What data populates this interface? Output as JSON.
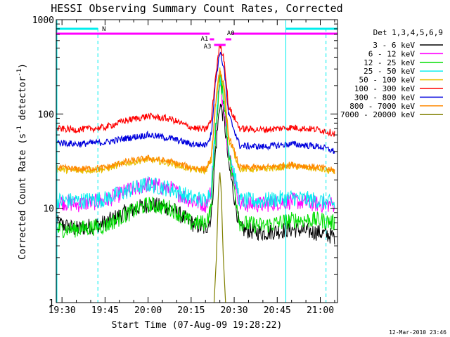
{
  "chart_data": {
    "type": "line",
    "title": "HESSI Observing Summary Count Rates, Corrected",
    "xlabel": "Start Time (07-Aug-09 19:28:22)",
    "ylabel": "Corrected Count Rate (s⁻¹ detector⁻¹)",
    "ylabel_parts": [
      "Corrected Count Rate (s",
      "-1",
      " detector",
      "-1",
      ")"
    ],
    "yscale": "log",
    "ylim": [
      1,
      1000
    ],
    "xlim_minutes": [
      -2,
      96
    ],
    "x_unit": "minutes after 19:30 UT",
    "x_ticks": [
      {
        "value": 0,
        "label": "19:30"
      },
      {
        "value": 15,
        "label": "19:45"
      },
      {
        "value": 30,
        "label": "20:00"
      },
      {
        "value": 45,
        "label": "20:15"
      },
      {
        "value": 60,
        "label": "20:30"
      },
      {
        "value": 75,
        "label": "20:45"
      },
      {
        "value": 90,
        "label": "21:00"
      }
    ],
    "y_ticks": [
      {
        "value": 1,
        "label": "1"
      },
      {
        "value": 10,
        "label": "10"
      },
      {
        "value": 100,
        "label": "100"
      },
      {
        "value": 1000,
        "label": "1000"
      }
    ],
    "legend_title": "Det 1,3,4,5,6,9",
    "legend_position": "right",
    "series": [
      {
        "name": "3 - 6 keV",
        "color": "#000000",
        "x": [
          -2,
          5,
          15,
          22,
          30,
          38,
          45,
          50,
          52,
          53.5,
          55,
          56.5,
          58,
          62,
          70,
          80,
          90,
          95
        ],
        "y": [
          7,
          6,
          7,
          9,
          11,
          10,
          7,
          6,
          8,
          40,
          130,
          90,
          30,
          6,
          5.5,
          6,
          5.5,
          5
        ]
      },
      {
        "name": "6 - 12 keV",
        "color": "#ff00ff",
        "x": [
          -2,
          5,
          15,
          22,
          30,
          38,
          45,
          50,
          52,
          53.5,
          55,
          56.5,
          58,
          62,
          70,
          80,
          90,
          95
        ],
        "y": [
          12,
          11,
          12,
          15,
          18,
          16,
          12,
          11,
          15,
          70,
          190,
          120,
          40,
          11,
          11,
          12,
          11,
          11
        ]
      },
      {
        "name": "12 - 25 keV",
        "color": "#00dd00",
        "x": [
          -2,
          5,
          15,
          22,
          30,
          38,
          45,
          50,
          52,
          53.5,
          55,
          56.5,
          58,
          62,
          70,
          80,
          90,
          95
        ],
        "y": [
          6,
          6,
          6.5,
          8.5,
          11,
          10,
          7,
          7,
          10,
          60,
          240,
          140,
          40,
          7,
          6.5,
          7.5,
          7.5,
          7
        ]
      },
      {
        "name": "25 - 50 keV",
        "color": "#00eeee",
        "x": [
          -2,
          5,
          15,
          22,
          30,
          38,
          45,
          50,
          52,
          53.5,
          55,
          56.5,
          58,
          62,
          70,
          80,
          90,
          95
        ],
        "y": [
          12,
          12,
          12.5,
          15,
          18,
          16,
          13,
          12,
          16,
          80,
          260,
          160,
          45,
          12,
          12,
          13,
          12,
          11
        ]
      },
      {
        "name": "50 - 100 keV",
        "color": "#e8c000",
        "x": [
          -2,
          5,
          15,
          22,
          30,
          38,
          45,
          50,
          52,
          53.5,
          55,
          56.5,
          58,
          62,
          70,
          80,
          90,
          95
        ],
        "y": [
          26,
          25,
          26,
          30,
          33,
          30,
          26,
          25,
          32,
          120,
          290,
          180,
          55,
          26,
          26,
          28,
          26,
          24
        ]
      },
      {
        "name": "100 - 300 keV",
        "color": "#ff0000",
        "x": [
          -2,
          5,
          15,
          22,
          30,
          38,
          45,
          50,
          52,
          53.5,
          55,
          56.5,
          58,
          62,
          70,
          80,
          90,
          95
        ],
        "y": [
          70,
          68,
          72,
          85,
          95,
          88,
          72,
          68,
          85,
          250,
          550,
          380,
          120,
          70,
          68,
          72,
          68,
          62
        ]
      },
      {
        "name": "300 - 800 keV",
        "color": "#0000dd",
        "x": [
          -2,
          5,
          15,
          22,
          30,
          38,
          45,
          50,
          52,
          53.5,
          55,
          56.5,
          58,
          62,
          70,
          80,
          90,
          95
        ],
        "y": [
          50,
          48,
          50,
          55,
          60,
          55,
          48,
          47,
          60,
          220,
          460,
          300,
          100,
          46,
          45,
          48,
          45,
          40
        ]
      },
      {
        "name": "800 - 7000 keV",
        "color": "#ff8800",
        "x": [
          -2,
          5,
          15,
          22,
          30,
          38,
          45,
          50,
          52,
          53.5,
          55,
          56.5,
          58,
          62,
          70,
          80,
          90,
          95
        ],
        "y": [
          27,
          26,
          27,
          31,
          34,
          31,
          27,
          26,
          33,
          130,
          300,
          190,
          60,
          27,
          27,
          29,
          27,
          25
        ]
      },
      {
        "name": "7000 - 20000 keV",
        "color": "#808000",
        "x": [
          53,
          53.8,
          54.5,
          55,
          55.5,
          56.2,
          57
        ],
        "y": [
          1,
          3,
          15,
          24,
          15,
          3,
          1
        ]
      }
    ],
    "attenuator_bar": {
      "color": "#ff00ff",
      "segments": [
        {
          "x0": -2,
          "x1": 51.5,
          "level": 0
        },
        {
          "x0": 51.5,
          "x1": 53,
          "level": 1
        },
        {
          "x0": 53,
          "x1": 57,
          "level": 2
        },
        {
          "x0": 57,
          "x1": 59,
          "level": 1
        },
        {
          "x0": 59,
          "x1": 96,
          "level": 0
        }
      ],
      "labels": [
        {
          "text": "A1",
          "x": 51
        },
        {
          "text": "A3",
          "x": 52
        },
        {
          "text": "A0",
          "x": 57.5
        }
      ]
    },
    "night_bar": {
      "color": "#00eeee",
      "label": "N",
      "segments": [
        {
          "x0": -2,
          "x1": 12.5
        },
        {
          "x0": 78,
          "x1": 96
        }
      ]
    },
    "night_lines": {
      "color": "#00eeee",
      "solid_x": [
        -2,
        78
      ],
      "dashed_x": [
        12.5,
        92
      ]
    },
    "timestamp": "12-Mar-2010 23:46"
  }
}
